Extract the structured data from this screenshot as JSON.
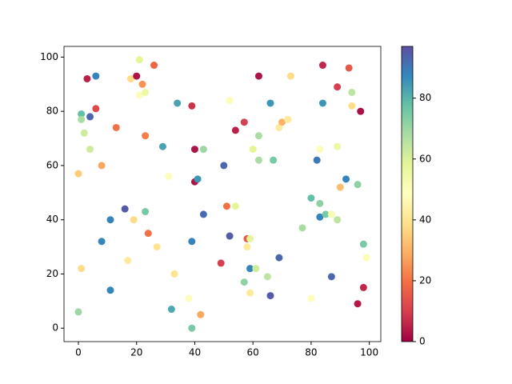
{
  "chart_data": {
    "type": "scatter",
    "colormap": "Spectral",
    "x": [
      0,
      0,
      1,
      1,
      1,
      2,
      3,
      4,
      4,
      6,
      6,
      8,
      8,
      11,
      11,
      13,
      16,
      17,
      18,
      19,
      20,
      21,
      21,
      22,
      23,
      23,
      23,
      24,
      26,
      27,
      29,
      31,
      32,
      33,
      34,
      38,
      39,
      39,
      39,
      40,
      40,
      41,
      42,
      43,
      43,
      49,
      50,
      51,
      52,
      52,
      54,
      54,
      57,
      57,
      58,
      58,
      59,
      59,
      59,
      60,
      61,
      62,
      62,
      62,
      65,
      66,
      66,
      67,
      69,
      69,
      70,
      72,
      73,
      77,
      80,
      80,
      82,
      83,
      83,
      83,
      84,
      84,
      85,
      87,
      87,
      89,
      89,
      89,
      90,
      92,
      93,
      94,
      94,
      96,
      96,
      97,
      98,
      98,
      99
    ],
    "y": [
      6,
      57,
      79,
      77,
      22,
      72,
      92,
      78,
      66,
      93,
      81,
      60,
      32,
      40,
      14,
      74,
      44,
      25,
      92,
      40,
      93,
      99,
      86,
      90,
      87,
      43,
      71,
      35,
      97,
      30,
      67,
      56,
      7,
      20,
      83,
      11,
      0,
      82,
      32,
      66,
      54,
      55,
      5,
      66,
      42,
      24,
      60,
      45,
      84,
      34,
      45,
      73,
      17,
      76,
      33,
      30,
      33,
      22,
      13,
      66,
      22,
      93,
      71,
      62,
      19,
      12,
      83,
      62,
      26,
      74,
      76,
      77,
      93,
      37,
      48,
      11,
      62,
      66,
      46,
      41,
      97,
      83,
      42,
      42,
      19,
      89,
      67,
      40,
      52,
      55,
      96,
      87,
      82,
      53,
      9,
      80,
      31,
      15,
      26
    ],
    "c": [
      70,
      35,
      78,
      68,
      38,
      62,
      5,
      93,
      62,
      88,
      12,
      28,
      88,
      88,
      88,
      20,
      95,
      42,
      38,
      38,
      3,
      58,
      50,
      25,
      55,
      75,
      22,
      20,
      18,
      40,
      83,
      50,
      82,
      40,
      83,
      48,
      75,
      8,
      88,
      3,
      3,
      85,
      28,
      70,
      92,
      10,
      93,
      20,
      50,
      95,
      58,
      5,
      72,
      10,
      15,
      42,
      58,
      88,
      42,
      58,
      62,
      3,
      68,
      68,
      65,
      95,
      85,
      75,
      93,
      42,
      30,
      42,
      38,
      68,
      78,
      48,
      90,
      50,
      72,
      88,
      6,
      85,
      75,
      52,
      93,
      10,
      55,
      65,
      32,
      88,
      15,
      65,
      38,
      72,
      4,
      2,
      75,
      6,
      50
    ],
    "xlim": [
      -4.95,
      103.95
    ],
    "ylim": [
      -4.95,
      103.95
    ],
    "clim": [
      0,
      97
    ],
    "xticks": [
      0,
      20,
      40,
      60,
      80,
      100
    ],
    "yticks": [
      0,
      20,
      40,
      60,
      80,
      100
    ],
    "cticks": [
      0,
      20,
      40,
      60,
      80
    ]
  }
}
